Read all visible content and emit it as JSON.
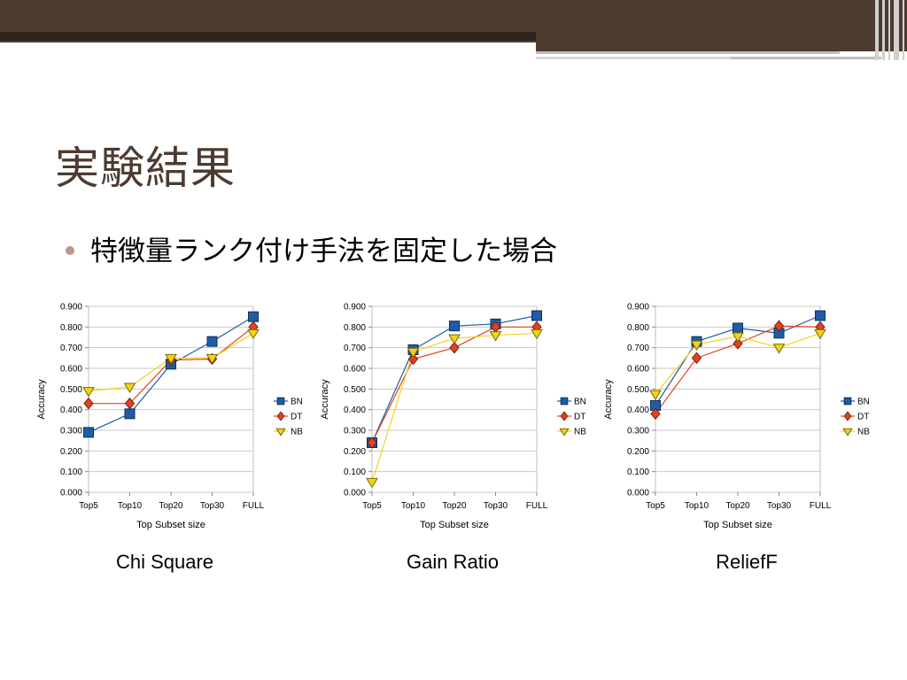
{
  "slide": {
    "title": "実験結果",
    "bullet": "特徴量ランク付け手法を固定した場合"
  },
  "colors": {
    "BN": "#1f5ca8",
    "DT": "#e0431f",
    "NB": "#f2d31b",
    "title": "#4d3b30"
  },
  "chart_data": [
    {
      "type": "line",
      "caption": "Chi Square",
      "xlabel": "Top Subset size",
      "ylabel": "Accuracy",
      "categories": [
        "Top5",
        "Top10",
        "Top20",
        "Top30",
        "FULL"
      ],
      "ylim": [
        0,
        0.9
      ],
      "yticks": [
        "0.000",
        "0.100",
        "0.200",
        "0.300",
        "0.400",
        "0.500",
        "0.600",
        "0.700",
        "0.800",
        "0.900"
      ],
      "grid": true,
      "legend": "right",
      "series": [
        {
          "name": "BN",
          "values": [
            0.29,
            0.38,
            0.62,
            0.73,
            0.85
          ]
        },
        {
          "name": "DT",
          "values": [
            0.43,
            0.43,
            0.64,
            0.645,
            0.8
          ]
        },
        {
          "name": "NB",
          "values": [
            0.49,
            0.51,
            0.65,
            0.65,
            0.77
          ]
        }
      ]
    },
    {
      "type": "line",
      "caption": "Gain Ratio",
      "xlabel": "Top Subset size",
      "ylabel": "Accuracy",
      "categories": [
        "Top5",
        "Top10",
        "Top20",
        "Top30",
        "FULL"
      ],
      "ylim": [
        0,
        0.9
      ],
      "yticks": [
        "0.000",
        "0.100",
        "0.200",
        "0.300",
        "0.400",
        "0.500",
        "0.600",
        "0.700",
        "0.800",
        "0.900"
      ],
      "grid": true,
      "legend": "right",
      "series": [
        {
          "name": "BN",
          "values": [
            0.24,
            0.69,
            0.805,
            0.815,
            0.855
          ]
        },
        {
          "name": "DT",
          "values": [
            0.24,
            0.645,
            0.7,
            0.8,
            0.8
          ]
        },
        {
          "name": "NB",
          "values": [
            0.05,
            0.68,
            0.745,
            0.76,
            0.77
          ]
        }
      ]
    },
    {
      "type": "line",
      "caption": "ReliefF",
      "xlabel": "Top Subset size",
      "ylabel": "Accuracy",
      "categories": [
        "Top5",
        "Top10",
        "Top20",
        "Top30",
        "FULL"
      ],
      "ylim": [
        0,
        0.9
      ],
      "yticks": [
        "0.000",
        "0.100",
        "0.200",
        "0.300",
        "0.400",
        "0.500",
        "0.600",
        "0.700",
        "0.800",
        "0.900"
      ],
      "grid": true,
      "legend": "right",
      "series": [
        {
          "name": "BN",
          "values": [
            0.42,
            0.73,
            0.795,
            0.77,
            0.855
          ]
        },
        {
          "name": "DT",
          "values": [
            0.38,
            0.65,
            0.72,
            0.805,
            0.8
          ]
        },
        {
          "name": "NB",
          "values": [
            0.475,
            0.715,
            0.755,
            0.7,
            0.77
          ]
        }
      ]
    }
  ]
}
